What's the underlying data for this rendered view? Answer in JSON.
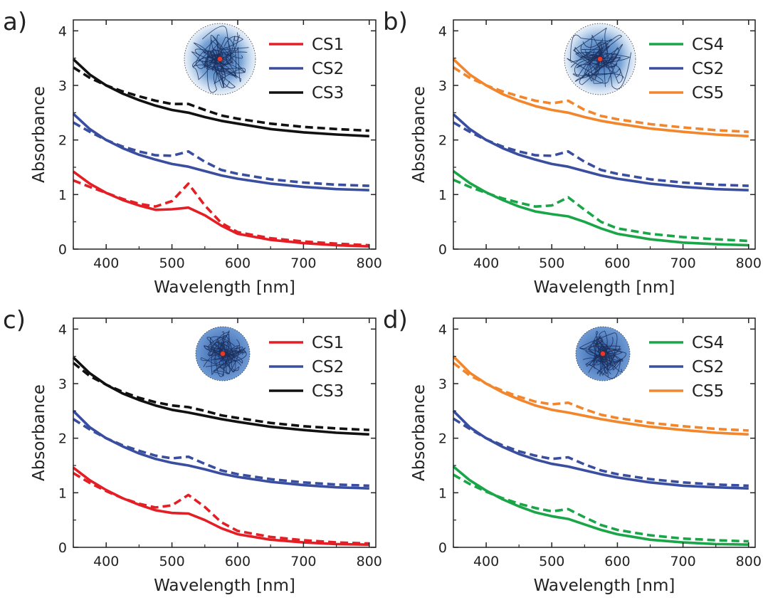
{
  "chart_data": [
    {
      "panel_label": "a)",
      "type": "line",
      "xlabel": "Wavelength [nm]",
      "ylabel": "Absorbance",
      "xlim": [
        350,
        810
      ],
      "ylim": [
        0,
        4.2
      ],
      "x_ticks": [
        400,
        500,
        600,
        700,
        800
      ],
      "y_ticks": [
        0,
        1,
        2,
        3,
        4
      ],
      "legend": {
        "position": "top-right",
        "entries": [
          "CS1",
          "CS2",
          "CS3"
        ]
      },
      "inset_icon": "polymer-coil-gradient-halo-icon",
      "series": [
        {
          "name": "CS1",
          "style": "solid",
          "color": "#e31e24",
          "x": [
            350,
            375,
            400,
            425,
            450,
            475,
            500,
            525,
            550,
            575,
            600,
            650,
            700,
            750,
            800
          ],
          "y": [
            1.42,
            1.2,
            1.03,
            0.9,
            0.8,
            0.72,
            0.73,
            0.76,
            0.62,
            0.43,
            0.28,
            0.17,
            0.11,
            0.07,
            0.05
          ]
        },
        {
          "name": "CS1 (dashed)",
          "style": "dashed",
          "color": "#e31e24",
          "x": [
            350,
            375,
            400,
            425,
            450,
            475,
            500,
            525,
            550,
            575,
            600,
            650,
            700,
            750,
            800
          ],
          "y": [
            1.26,
            1.14,
            1.03,
            0.92,
            0.83,
            0.78,
            0.88,
            1.2,
            0.8,
            0.48,
            0.31,
            0.2,
            0.14,
            0.1,
            0.07
          ]
        },
        {
          "name": "CS2",
          "style": "solid",
          "color": "#3a4ea0",
          "x": [
            350,
            375,
            400,
            425,
            450,
            475,
            500,
            525,
            550,
            575,
            600,
            650,
            700,
            750,
            800
          ],
          "y": [
            2.48,
            2.2,
            2.0,
            1.85,
            1.73,
            1.64,
            1.56,
            1.51,
            1.43,
            1.35,
            1.29,
            1.2,
            1.14,
            1.1,
            1.08
          ]
        },
        {
          "name": "CS2 (dashed)",
          "style": "dashed",
          "color": "#3a4ea0",
          "x": [
            350,
            375,
            400,
            425,
            450,
            475,
            500,
            525,
            550,
            575,
            600,
            650,
            700,
            750,
            800
          ],
          "y": [
            2.32,
            2.15,
            2.0,
            1.88,
            1.79,
            1.72,
            1.71,
            1.79,
            1.6,
            1.45,
            1.38,
            1.28,
            1.22,
            1.18,
            1.16
          ]
        },
        {
          "name": "CS3",
          "style": "solid",
          "color": "#111111",
          "x": [
            350,
            375,
            400,
            425,
            450,
            475,
            500,
            525,
            550,
            575,
            600,
            650,
            700,
            750,
            800
          ],
          "y": [
            3.48,
            3.2,
            3.0,
            2.85,
            2.73,
            2.63,
            2.55,
            2.5,
            2.42,
            2.35,
            2.3,
            2.2,
            2.14,
            2.1,
            2.07
          ]
        },
        {
          "name": "CS3 (dashed)",
          "style": "dashed",
          "color": "#111111",
          "x": [
            350,
            375,
            400,
            425,
            450,
            475,
            500,
            525,
            550,
            575,
            600,
            650,
            700,
            750,
            800
          ],
          "y": [
            3.33,
            3.14,
            3.0,
            2.89,
            2.8,
            2.72,
            2.66,
            2.66,
            2.55,
            2.45,
            2.39,
            2.3,
            2.24,
            2.2,
            2.17
          ]
        }
      ]
    },
    {
      "panel_label": "b)",
      "type": "line",
      "xlabel": "Wavelength [nm]",
      "ylabel": "Absorbance",
      "xlim": [
        350,
        810
      ],
      "ylim": [
        0,
        4.2
      ],
      "x_ticks": [
        400,
        500,
        600,
        700,
        800
      ],
      "y_ticks": [
        0,
        1,
        2,
        3,
        4
      ],
      "legend": {
        "position": "top-right",
        "entries": [
          "CS4",
          "CS2",
          "CS5"
        ]
      },
      "inset_icon": "polymer-coil-gradient-halo-icon",
      "series": [
        {
          "name": "CS4",
          "style": "solid",
          "color": "#1aa548",
          "x": [
            350,
            375,
            400,
            425,
            450,
            475,
            500,
            525,
            550,
            575,
            600,
            650,
            700,
            750,
            800
          ],
          "y": [
            1.43,
            1.21,
            1.04,
            0.9,
            0.78,
            0.69,
            0.64,
            0.6,
            0.5,
            0.38,
            0.28,
            0.18,
            0.12,
            0.09,
            0.07
          ]
        },
        {
          "name": "CS4 (dashed)",
          "style": "dashed",
          "color": "#1aa548",
          "x": [
            350,
            375,
            400,
            425,
            450,
            475,
            500,
            525,
            550,
            575,
            600,
            650,
            700,
            750,
            800
          ],
          "y": [
            1.27,
            1.14,
            1.03,
            0.93,
            0.85,
            0.78,
            0.8,
            0.95,
            0.72,
            0.5,
            0.38,
            0.28,
            0.22,
            0.18,
            0.15
          ]
        },
        {
          "name": "CS2",
          "style": "solid",
          "color": "#3a4ea0",
          "x": [
            350,
            375,
            400,
            425,
            450,
            475,
            500,
            525,
            550,
            575,
            600,
            650,
            700,
            750,
            800
          ],
          "y": [
            2.47,
            2.2,
            2.0,
            1.85,
            1.73,
            1.64,
            1.56,
            1.51,
            1.43,
            1.35,
            1.29,
            1.2,
            1.14,
            1.1,
            1.08
          ]
        },
        {
          "name": "CS2 (dashed)",
          "style": "dashed",
          "color": "#3a4ea0",
          "x": [
            350,
            375,
            400,
            425,
            450,
            475,
            500,
            525,
            550,
            575,
            600,
            650,
            700,
            750,
            800
          ],
          "y": [
            2.32,
            2.15,
            2.0,
            1.88,
            1.79,
            1.72,
            1.71,
            1.79,
            1.6,
            1.45,
            1.38,
            1.28,
            1.22,
            1.18,
            1.16
          ]
        },
        {
          "name": "CS5",
          "style": "solid",
          "color": "#f2862c",
          "x": [
            350,
            375,
            400,
            425,
            450,
            475,
            500,
            525,
            550,
            575,
            600,
            650,
            700,
            750,
            800
          ],
          "y": [
            3.48,
            3.2,
            3.0,
            2.84,
            2.72,
            2.62,
            2.55,
            2.5,
            2.42,
            2.35,
            2.3,
            2.21,
            2.15,
            2.1,
            2.07
          ]
        },
        {
          "name": "CS5 (dashed)",
          "style": "dashed",
          "color": "#f2862c",
          "x": [
            350,
            375,
            400,
            425,
            450,
            475,
            500,
            525,
            550,
            575,
            600,
            650,
            700,
            750,
            800
          ],
          "y": [
            3.33,
            3.14,
            3.0,
            2.89,
            2.8,
            2.72,
            2.67,
            2.72,
            2.55,
            2.44,
            2.38,
            2.29,
            2.23,
            2.18,
            2.15
          ]
        }
      ]
    },
    {
      "panel_label": "c)",
      "type": "line",
      "xlabel": "Wavelength [nm]",
      "ylabel": "Absorbance",
      "xlim": [
        350,
        810
      ],
      "ylim": [
        0,
        4.2
      ],
      "x_ticks": [
        400,
        500,
        600,
        700,
        800
      ],
      "y_ticks": [
        0,
        1,
        2,
        3,
        4
      ],
      "legend": {
        "position": "top-right",
        "entries": [
          "CS1",
          "CS2",
          "CS3"
        ]
      },
      "inset_icon": "polymer-coil-compact-icon",
      "series": [
        {
          "name": "CS1",
          "style": "solid",
          "color": "#e31e24",
          "x": [
            350,
            375,
            400,
            425,
            450,
            475,
            500,
            525,
            550,
            575,
            600,
            650,
            700,
            750,
            800
          ],
          "y": [
            1.46,
            1.23,
            1.05,
            0.9,
            0.78,
            0.68,
            0.63,
            0.62,
            0.5,
            0.35,
            0.24,
            0.14,
            0.09,
            0.06,
            0.05
          ]
        },
        {
          "name": "CS1 (dashed)",
          "style": "dashed",
          "color": "#e31e24",
          "x": [
            350,
            375,
            400,
            425,
            450,
            475,
            500,
            525,
            550,
            575,
            600,
            650,
            700,
            750,
            800
          ],
          "y": [
            1.36,
            1.18,
            1.03,
            0.9,
            0.8,
            0.73,
            0.77,
            0.96,
            0.74,
            0.46,
            0.3,
            0.19,
            0.13,
            0.09,
            0.07
          ]
        },
        {
          "name": "CS2",
          "style": "solid",
          "color": "#3a4ea0",
          "x": [
            350,
            375,
            400,
            425,
            450,
            475,
            500,
            525,
            550,
            575,
            600,
            650,
            700,
            750,
            800
          ],
          "y": [
            2.5,
            2.2,
            2.0,
            1.85,
            1.72,
            1.62,
            1.55,
            1.5,
            1.43,
            1.35,
            1.29,
            1.2,
            1.14,
            1.1,
            1.08
          ]
        },
        {
          "name": "CS2 (dashed)",
          "style": "dashed",
          "color": "#3a4ea0",
          "x": [
            350,
            375,
            400,
            425,
            450,
            475,
            500,
            525,
            550,
            575,
            600,
            650,
            700,
            750,
            800
          ],
          "y": [
            2.35,
            2.16,
            2.0,
            1.87,
            1.77,
            1.68,
            1.63,
            1.66,
            1.53,
            1.41,
            1.34,
            1.25,
            1.19,
            1.15,
            1.13
          ]
        },
        {
          "name": "CS3",
          "style": "solid",
          "color": "#111111",
          "x": [
            350,
            375,
            400,
            425,
            450,
            475,
            500,
            525,
            550,
            575,
            600,
            650,
            700,
            750,
            800
          ],
          "y": [
            3.48,
            3.19,
            2.98,
            2.82,
            2.7,
            2.6,
            2.52,
            2.47,
            2.41,
            2.35,
            2.3,
            2.21,
            2.15,
            2.1,
            2.07
          ]
        },
        {
          "name": "CS3 (dashed)",
          "style": "dashed",
          "color": "#111111",
          "x": [
            350,
            375,
            400,
            425,
            450,
            475,
            500,
            525,
            550,
            575,
            600,
            650,
            700,
            750,
            800
          ],
          "y": [
            3.38,
            3.14,
            2.98,
            2.85,
            2.74,
            2.66,
            2.6,
            2.57,
            2.5,
            2.42,
            2.37,
            2.28,
            2.22,
            2.18,
            2.15
          ]
        }
      ]
    },
    {
      "panel_label": "d)",
      "type": "line",
      "xlabel": "Wavelength [nm]",
      "ylabel": "Absorbance",
      "xlim": [
        350,
        810
      ],
      "ylim": [
        0,
        4.2
      ],
      "x_ticks": [
        400,
        500,
        600,
        700,
        800
      ],
      "y_ticks": [
        0,
        1,
        2,
        3,
        4
      ],
      "legend": {
        "position": "top-right",
        "entries": [
          "CS4",
          "CS2",
          "CS5"
        ]
      },
      "inset_icon": "polymer-coil-compact-icon",
      "series": [
        {
          "name": "CS4",
          "style": "solid",
          "color": "#1aa548",
          "x": [
            350,
            375,
            400,
            425,
            450,
            475,
            500,
            525,
            550,
            575,
            600,
            650,
            700,
            750,
            800
          ],
          "y": [
            1.48,
            1.23,
            1.04,
            0.88,
            0.75,
            0.64,
            0.57,
            0.52,
            0.42,
            0.32,
            0.24,
            0.14,
            0.09,
            0.06,
            0.05
          ]
        },
        {
          "name": "CS4 (dashed)",
          "style": "dashed",
          "color": "#1aa548",
          "x": [
            350,
            375,
            400,
            425,
            450,
            475,
            500,
            525,
            550,
            575,
            600,
            650,
            700,
            750,
            800
          ],
          "y": [
            1.33,
            1.16,
            1.02,
            0.9,
            0.8,
            0.72,
            0.66,
            0.7,
            0.55,
            0.41,
            0.32,
            0.22,
            0.16,
            0.13,
            0.11
          ]
        },
        {
          "name": "CS2",
          "style": "solid",
          "color": "#3a4ea0",
          "x": [
            350,
            375,
            400,
            425,
            450,
            475,
            500,
            525,
            550,
            575,
            600,
            650,
            700,
            750,
            800
          ],
          "y": [
            2.5,
            2.2,
            2.0,
            1.84,
            1.71,
            1.61,
            1.53,
            1.48,
            1.41,
            1.34,
            1.28,
            1.19,
            1.13,
            1.1,
            1.08
          ]
        },
        {
          "name": "CS2 (dashed)",
          "style": "dashed",
          "color": "#3a4ea0",
          "x": [
            350,
            375,
            400,
            425,
            450,
            475,
            500,
            525,
            550,
            575,
            600,
            650,
            700,
            750,
            800
          ],
          "y": [
            2.36,
            2.17,
            2.0,
            1.87,
            1.76,
            1.68,
            1.62,
            1.65,
            1.52,
            1.41,
            1.34,
            1.25,
            1.19,
            1.15,
            1.13
          ]
        },
        {
          "name": "CS5",
          "style": "solid",
          "color": "#f2862c",
          "x": [
            350,
            375,
            400,
            425,
            450,
            475,
            500,
            525,
            550,
            575,
            600,
            650,
            700,
            750,
            800
          ],
          "y": [
            3.5,
            3.2,
            3.0,
            2.84,
            2.71,
            2.6,
            2.52,
            2.47,
            2.41,
            2.35,
            2.3,
            2.21,
            2.15,
            2.1,
            2.07
          ]
        },
        {
          "name": "CS5 (dashed)",
          "style": "dashed",
          "color": "#f2862c",
          "x": [
            350,
            375,
            400,
            425,
            450,
            475,
            500,
            525,
            550,
            575,
            600,
            650,
            700,
            750,
            800
          ],
          "y": [
            3.38,
            3.15,
            3.0,
            2.87,
            2.76,
            2.67,
            2.62,
            2.65,
            2.53,
            2.43,
            2.37,
            2.28,
            2.22,
            2.17,
            2.14
          ]
        }
      ]
    }
  ]
}
